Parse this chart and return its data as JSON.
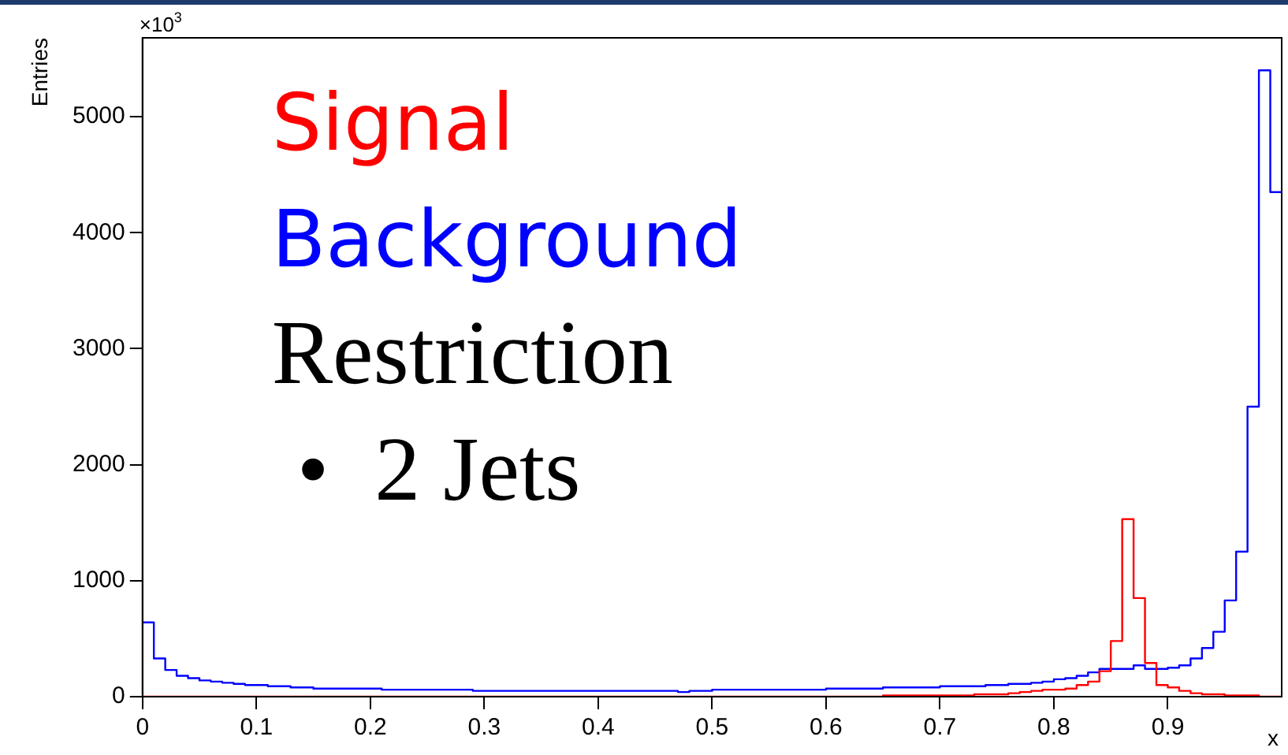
{
  "chart_data": {
    "type": "histogram",
    "ylabel": "Entries",
    "xlabel": "x",
    "bins": [
      0,
      0.01,
      0.02,
      0.03,
      0.04,
      0.05,
      0.06,
      0.07,
      0.08,
      0.09,
      0.1,
      0.11,
      0.12,
      0.13,
      0.14,
      0.15,
      0.16,
      0.17,
      0.18,
      0.19,
      0.2,
      0.21,
      0.22,
      0.23,
      0.24,
      0.25,
      0.26,
      0.27,
      0.28,
      0.29,
      0.3,
      0.31,
      0.32,
      0.33,
      0.34,
      0.35,
      0.36,
      0.37,
      0.38,
      0.39,
      0.4,
      0.41,
      0.42,
      0.43,
      0.44,
      0.45,
      0.46,
      0.47,
      0.48,
      0.49,
      0.5,
      0.51,
      0.52,
      0.53,
      0.54,
      0.55,
      0.56,
      0.57,
      0.58,
      0.59,
      0.6,
      0.61,
      0.62,
      0.63,
      0.64,
      0.65,
      0.66,
      0.67,
      0.68,
      0.69,
      0.7,
      0.71,
      0.72,
      0.73,
      0.74,
      0.75,
      0.76,
      0.77,
      0.78,
      0.79,
      0.8,
      0.81,
      0.82,
      0.83,
      0.84,
      0.85,
      0.86,
      0.87,
      0.88,
      0.89,
      0.9,
      0.91,
      0.92,
      0.93,
      0.94,
      0.95,
      0.96,
      0.97,
      0.98,
      0.99,
      1
    ],
    "series": [
      {
        "name": "Signal",
        "color": "#ff0000",
        "values": [
          0,
          0,
          0,
          0,
          0,
          0,
          0,
          0,
          0,
          0,
          0,
          0,
          0,
          0,
          0,
          0,
          0,
          0,
          0,
          0,
          0,
          0,
          0,
          0,
          0,
          0,
          0,
          0,
          0,
          0,
          0,
          0,
          0,
          0,
          0,
          0,
          0,
          0,
          0,
          0,
          0,
          0,
          0,
          0,
          0,
          0,
          0,
          0,
          0,
          0,
          0,
          0,
          0,
          0,
          0,
          0,
          0,
          0,
          0,
          0,
          0,
          0,
          0,
          0,
          0,
          10,
          10,
          10,
          10,
          10,
          10,
          10,
          10,
          20,
          20,
          20,
          30,
          40,
          50,
          60,
          60,
          70,
          100,
          130,
          220,
          480,
          1530,
          850,
          290,
          100,
          80,
          50,
          30,
          20,
          20,
          10,
          10,
          10,
          0,
          0
        ]
      },
      {
        "name": "Background",
        "color": "#0000ff",
        "values": [
          640,
          330,
          230,
          180,
          160,
          140,
          130,
          120,
          110,
          100,
          100,
          90,
          90,
          80,
          80,
          70,
          70,
          70,
          70,
          70,
          70,
          60,
          60,
          60,
          60,
          60,
          60,
          60,
          60,
          50,
          50,
          50,
          50,
          50,
          50,
          50,
          50,
          50,
          50,
          50,
          50,
          50,
          50,
          50,
          50,
          50,
          50,
          40,
          50,
          50,
          60,
          60,
          60,
          60,
          60,
          60,
          60,
          60,
          60,
          60,
          70,
          70,
          70,
          70,
          70,
          80,
          80,
          80,
          80,
          80,
          90,
          90,
          90,
          90,
          100,
          100,
          110,
          110,
          120,
          130,
          150,
          160,
          180,
          210,
          240,
          240,
          240,
          270,
          240,
          240,
          250,
          270,
          330,
          420,
          560,
          830,
          1250,
          2500,
          5400,
          4350
        ]
      }
    ],
    "xlim": [
      0,
      1
    ],
    "xticks": [
      0,
      0.1,
      0.2,
      0.3,
      0.4,
      0.5,
      0.6,
      0.7,
      0.8,
      0.9
    ],
    "ylim": [
      0,
      5680
    ],
    "yticks": [
      0,
      1000,
      2000,
      3000,
      4000,
      5000
    ],
    "grid": false,
    "legend": "top left",
    "line_style": "solid",
    "marker": "none",
    "annotations": [
      "×10$^{3}$",
      "Restriction",
      "•  2 Jets"
    ]
  }
}
